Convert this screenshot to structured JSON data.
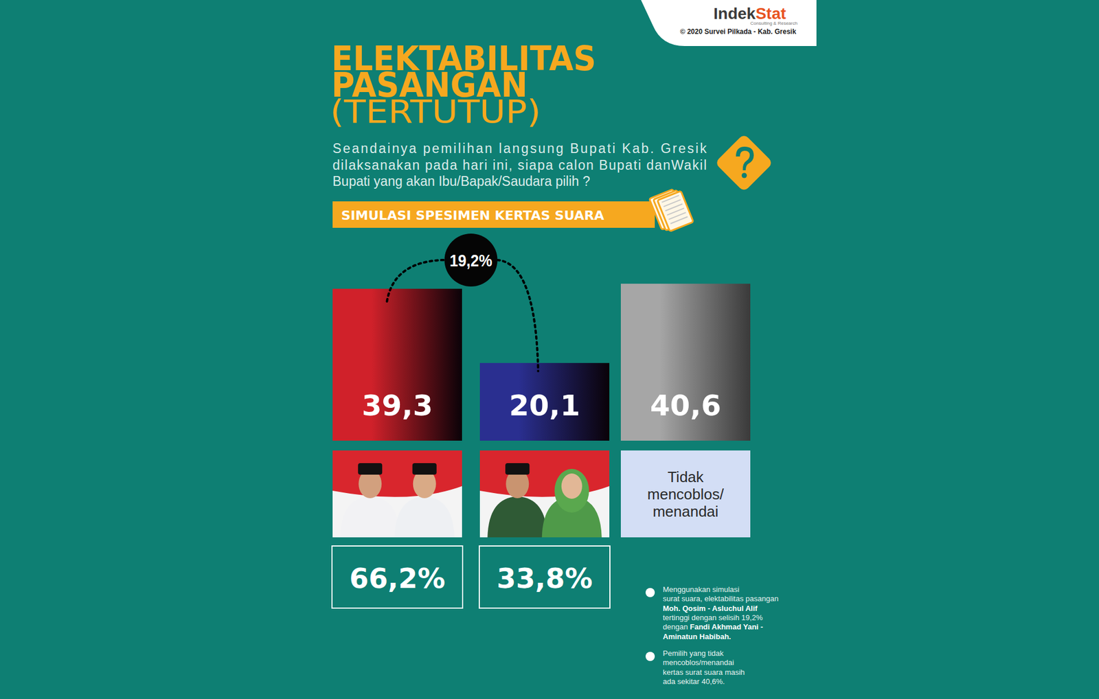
{
  "header": {
    "brand": [
      "Indek",
      "Stat"
    ],
    "tagline": "Consulting & Research",
    "source": "© 2020 Survei Pilkada - Kab. Gresik"
  },
  "chart_data": {
    "type": "bar",
    "title": "ELEKTABILITAS PASANGAN",
    "subtitle": "(TERTUTUP)",
    "question": [
      "Seandainya pemilihan langsung Bupati Kab. Gresik",
      "dilaksanakan pada hari ini, siapa calon Bupati danWakil",
      "Bupati yang akan Ibu/Bapak/Saudara pilih ?"
    ],
    "banner": "SIMULASI SPESIMEN KERTAS SUARA",
    "categories": [
      null,
      null,
      "Tidak mencoblos/ menandai"
    ],
    "values": [
      39.3,
      20.1,
      40.6
    ],
    "value_labels": [
      "39,3",
      "20,1",
      "40,6"
    ],
    "colors": [
      "#d0212a",
      "#2a2f90",
      "#a6a6a6"
    ],
    "data_labels": true,
    "ylim": [
      0,
      50
    ],
    "tick_labels": false,
    "difference": {
      "value": 19.2,
      "label": "19,2%"
    },
    "shares": {
      "values": [
        66.2,
        33.8
      ],
      "value_labels": [
        "66,2%",
        "33,8%"
      ]
    },
    "notes": [
      {
        "lines": [
          "Menggunakan simulasi",
          "surat suara, elektabilitas pasangan",
          [
            "Moh. Qosim - Asluchul Alif"
          ],
          "tertinggi dengan selisih 19,2%",
          [
            "dengan ",
            "Fandi Akhmad Yani -"
          ],
          [
            "Aminatun Habibah."
          ]
        ]
      },
      {
        "lines": [
          "Pemilih yang tidak",
          "mencoblos/menandai",
          "kertas surat suara masih",
          "ada sekitar 40,6%."
        ]
      }
    ]
  }
}
